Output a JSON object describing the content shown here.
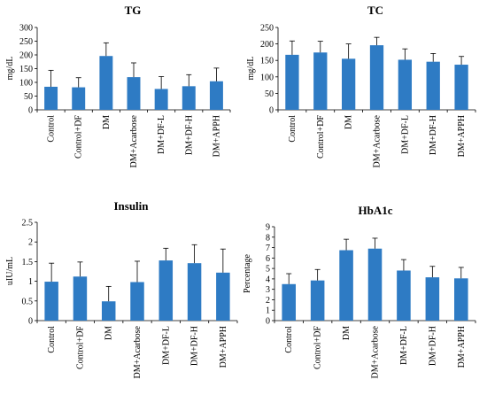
{
  "colors": {
    "bar": "#2e7bc4"
  },
  "chart_data": [
    {
      "type": "bar",
      "title": "TG",
      "ylabel": "mg/dL",
      "xlabel": "",
      "categories": [
        "Control",
        "Control+DF",
        "DM",
        "DM+Acarbose",
        "DM+DF-L",
        "DM+DF-H",
        "DM+APPH"
      ],
      "values": [
        84,
        82,
        196,
        119,
        76,
        86,
        104
      ],
      "errors": [
        60,
        35,
        48,
        52,
        45,
        42,
        48
      ],
      "ylim": [
        0,
        300
      ],
      "yticks": [
        0,
        50,
        100,
        150,
        200,
        250,
        300
      ],
      "ytick_labels": [
        "0",
        "50",
        "100",
        "150",
        "200",
        "250",
        "300"
      ],
      "grid": false,
      "legend": "none"
    },
    {
      "type": "bar",
      "title": "TC",
      "ylabel": "mg/dL",
      "xlabel": "",
      "categories": [
        "Control",
        "Control+DF",
        "DM",
        "DM+Acarbose",
        "DM+DF-L",
        "DM+DF-H",
        "DM+APPH"
      ],
      "values": [
        167,
        174,
        155,
        196,
        152,
        146,
        137
      ],
      "errors": [
        42,
        34,
        45,
        24,
        33,
        25,
        25
      ],
      "ylim": [
        0,
        250
      ],
      "yticks": [
        0,
        50,
        100,
        150,
        200,
        250
      ],
      "ytick_labels": [
        "0",
        "50",
        "100",
        "150",
        "200",
        "250"
      ],
      "grid": false,
      "legend": "none"
    },
    {
      "type": "bar",
      "title": "Insulin",
      "ylabel": "uIU/mL",
      "xlabel": "",
      "categories": [
        "Control",
        "Control+DF",
        "DM",
        "DM+Acarbose",
        "DM+DF-L",
        "DM+DF-H",
        "DM+APPH"
      ],
      "values": [
        0.99,
        1.12,
        0.49,
        0.98,
        1.53,
        1.46,
        1.22
      ],
      "errors": [
        0.47,
        0.37,
        0.38,
        0.53,
        0.31,
        0.47,
        0.6
      ],
      "ylim": [
        0,
        2.5
      ],
      "yticks": [
        0,
        0.5,
        1,
        1.5,
        2,
        2.5
      ],
      "ytick_labels": [
        "0",
        "0.5",
        "1",
        "1.5",
        "2",
        "2.5"
      ],
      "grid": false,
      "legend": "none"
    },
    {
      "type": "bar",
      "title": "HbA1c",
      "ylabel": "Percentage",
      "xlabel": "",
      "categories": [
        "Control",
        "Control+DF",
        "DM",
        "DM+Acarbose",
        "DM+DF-L",
        "DM+DF-H",
        "DM+APPH"
      ],
      "values": [
        3.5,
        3.85,
        6.75,
        6.9,
        4.8,
        4.15,
        4.05
      ],
      "errors": [
        1.0,
        1.05,
        1.05,
        1.0,
        1.05,
        1.05,
        1.05
      ],
      "ylim": [
        0,
        9
      ],
      "yticks": [
        0,
        1,
        2,
        3,
        4,
        5,
        6,
        7,
        8,
        9
      ],
      "ytick_labels": [
        "0",
        "1",
        "2",
        "3",
        "4",
        "5",
        "6",
        "7",
        "8",
        "9"
      ],
      "grid": false,
      "legend": "none"
    }
  ]
}
